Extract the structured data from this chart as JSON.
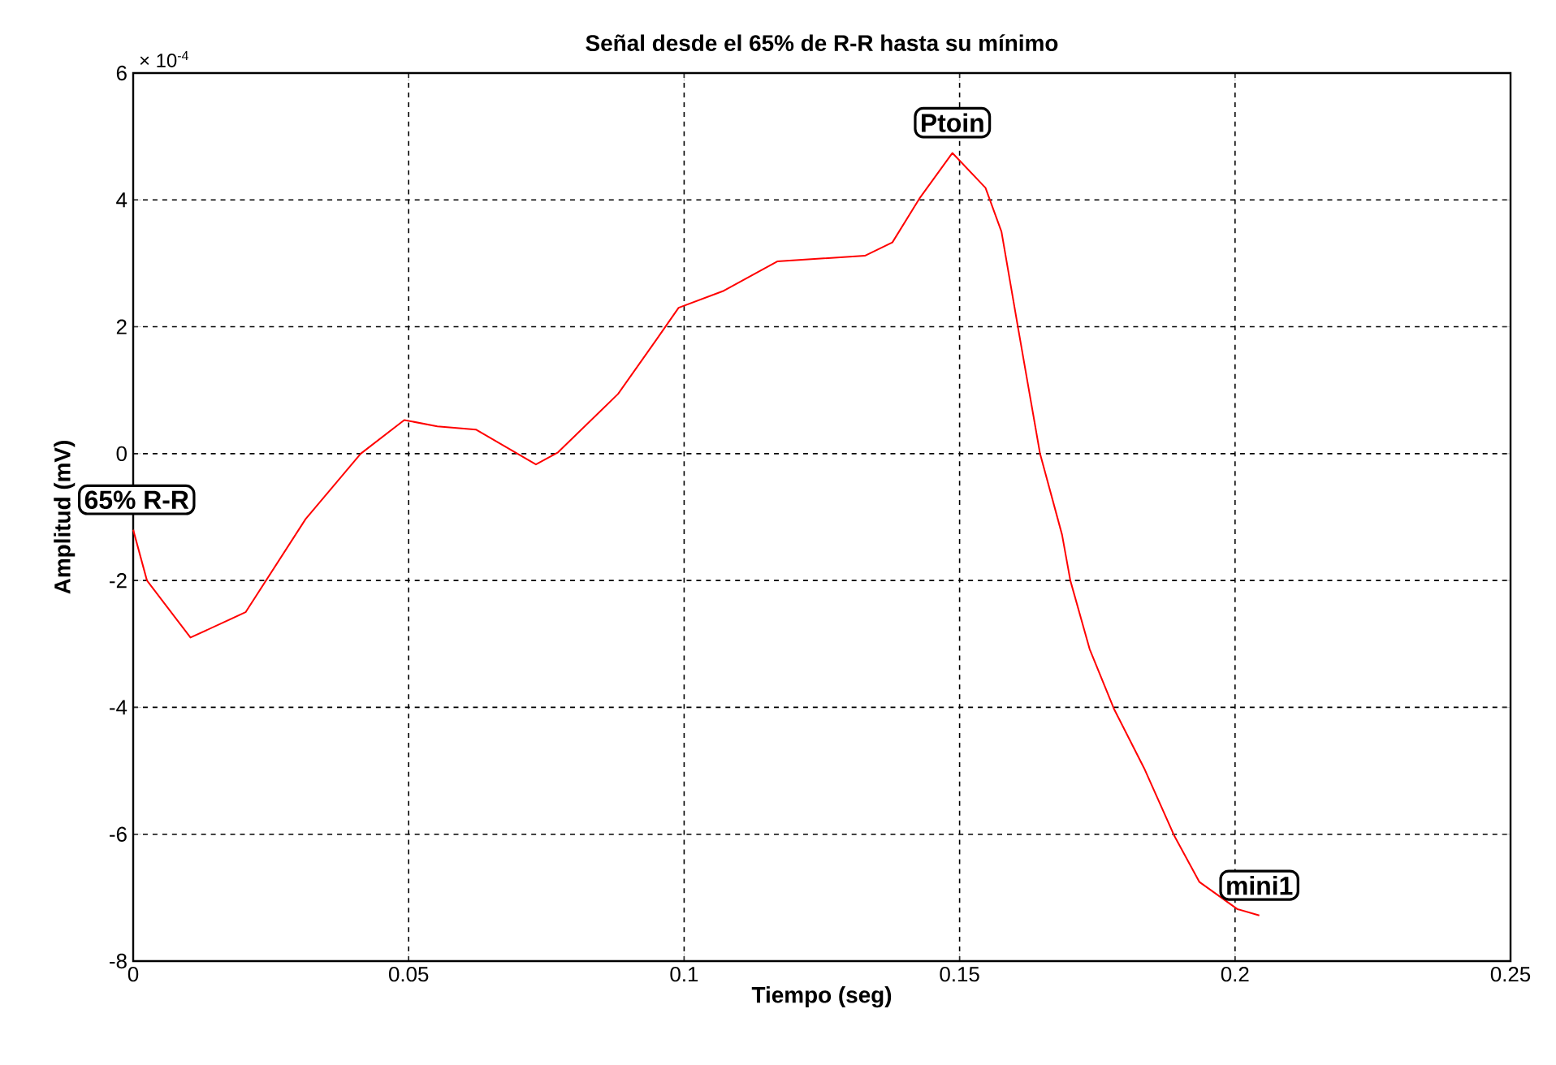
{
  "chart_data": {
    "type": "line",
    "title": "Señal desde el 65% de R-R hasta su mínimo",
    "xlabel": "Tiempo (seg)",
    "ylabel": "Amplitud (mV)",
    "xlim": [
      0,
      0.25
    ],
    "ylim": [
      -8,
      6
    ],
    "xticks": [
      0,
      0.05,
      0.1,
      0.15,
      0.2,
      0.25
    ],
    "yticks": [
      -8,
      -6,
      -4,
      -2,
      0,
      2,
      4,
      6
    ],
    "grid": true,
    "annotations": [
      "× 10$^{-4}$",
      {
        "text": "65% R-R",
        "x": 0,
        "y": -1.2
      },
      {
        "text": "Ptoin",
        "x": 0.1487,
        "y": 4.74
      },
      {
        "text": "mini1",
        "x": 0.2044,
        "y": -7.28
      }
    ],
    "series": [
      {
        "color": "#ff0000",
        "x": [
          0,
          0.0025,
          0.0104,
          0.0204,
          0.0313,
          0.0413,
          0.0492,
          0.0552,
          0.0622,
          0.0731,
          0.0771,
          0.088,
          0.095,
          0.099,
          0.107,
          0.1169,
          0.1328,
          0.1378,
          0.1427,
          0.1487,
          0.1547,
          0.1576,
          0.1606,
          0.1646,
          0.1686,
          0.1701,
          0.1736,
          0.178,
          0.1835,
          0.189,
          0.1935,
          0.2004,
          0.2044
        ],
        "values": [
          -1.2,
          -2.0,
          -2.9,
          -2.5,
          -1.03,
          0,
          0.53,
          0.43,
          0.38,
          -0.17,
          0.02,
          0.94,
          1.8,
          2.3,
          2.56,
          3.03,
          3.12,
          3.33,
          4.02,
          4.74,
          4.19,
          3.5,
          1.99,
          0,
          -1.28,
          -2.0,
          -3.08,
          -4.02,
          -4.96,
          -6.03,
          -6.75,
          -7.18,
          -7.28
        ]
      }
    ]
  }
}
